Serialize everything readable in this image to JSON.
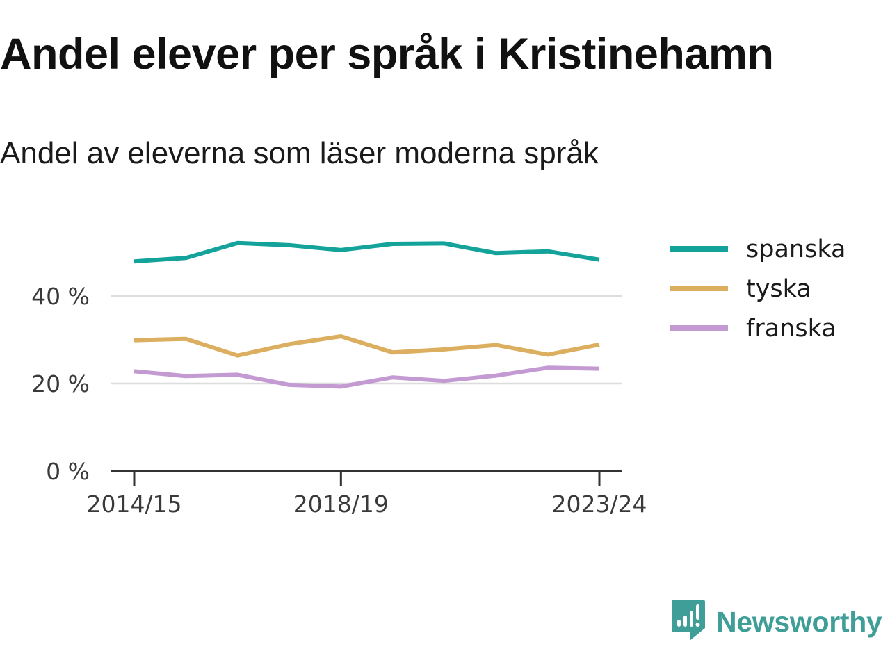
{
  "title": "Andel elever per språk i Kristinehamn",
  "subtitle": "Andel av eleverna som läser moderna språk",
  "brand": {
    "name": "Newsworthy",
    "color": "#3f9e98",
    "icon": "newsworthy-logo-icon"
  },
  "colors": {
    "grid": "#dddddd",
    "axis": "#333333",
    "text": "#3a3a3a"
  },
  "chart_data": {
    "type": "line",
    "x": [
      "2014/15",
      "2015/16",
      "2016/17",
      "2017/18",
      "2018/19",
      "2019/20",
      "2020/21",
      "2021/22",
      "2022/23",
      "2023/24"
    ],
    "x_tick_labels": [
      "2014/15",
      "2018/19",
      "2023/24"
    ],
    "y_ticks": [
      0,
      20,
      40
    ],
    "y_tick_labels": [
      "0 %",
      "20 %",
      "40 %"
    ],
    "ylim": [
      0,
      50
    ],
    "grid": true,
    "legend_position": "right",
    "series": [
      {
        "name": "spanska",
        "color": "#14a39b",
        "values": [
          47.9,
          48.7,
          52.1,
          51.6,
          50.5,
          51.9,
          52.0,
          49.8,
          50.2,
          48.3
        ]
      },
      {
        "name": "tyska",
        "color": "#dbaf5f",
        "values": [
          29.9,
          30.2,
          26.4,
          29.0,
          30.8,
          27.1,
          27.8,
          28.8,
          26.6,
          28.9
        ]
      },
      {
        "name": "franska",
        "color": "#c39bd2",
        "values": [
          22.8,
          21.7,
          22.0,
          19.7,
          19.3,
          21.4,
          20.6,
          21.8,
          23.6,
          23.4
        ]
      }
    ]
  }
}
